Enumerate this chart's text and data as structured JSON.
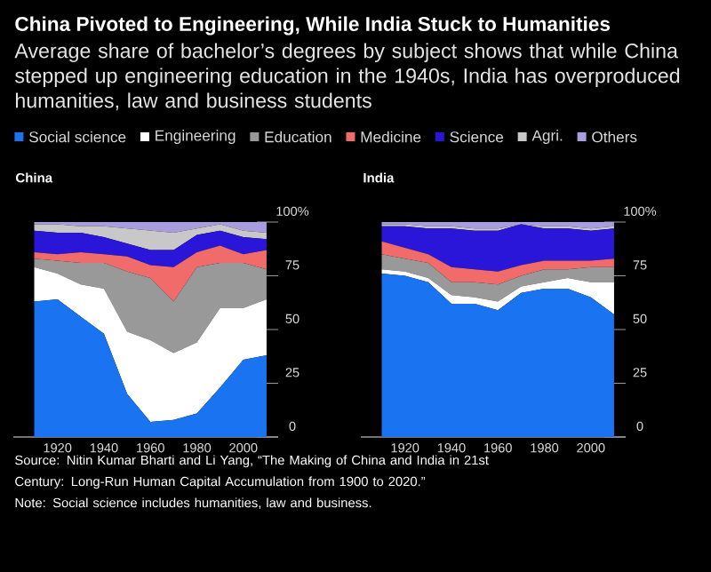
{
  "chart_data": [
    {
      "type": "area",
      "stacked": true,
      "title": "China",
      "annotations": [
        "China Pivoted to Engineering, While India Stuck to Humanities",
        "Average share of bachelor’s degrees by subject shows that while China stepped up engineering education in the 1940s, India has overproduced humanities, law and business students",
        "Source: Nitin Kumar Bharti and Li Yang, “The Making of China and India in 21st Century: Long-Run Human Capital Accumulation from 1900 to 2020.”",
        "Note: Social science includes humanities, law and business."
      ],
      "legend": "top",
      "x": [
        1910,
        1920,
        1930,
        1940,
        1950,
        1960,
        1970,
        1980,
        1990,
        2000,
        2010
      ],
      "xlim": [
        1901,
        2015
      ],
      "xticks": [
        1920,
        1940,
        1960,
        1980,
        2000
      ],
      "ylim": [
        0,
        100
      ],
      "yticks": [
        0,
        25,
        50,
        75,
        {
          "value": 100,
          "label": "100%"
        }
      ],
      "series": [
        {
          "name": "Social science",
          "color": "#1a73f0",
          "values": [
            63,
            64,
            56,
            48,
            20,
            7,
            8,
            11,
            23,
            36,
            38
          ]
        },
        {
          "name": "Engineering",
          "color": "#ffffff",
          "values": [
            16,
            12,
            15,
            21,
            29,
            38,
            31,
            33,
            37,
            24,
            26
          ]
        },
        {
          "name": "Education",
          "color": "#999999",
          "values": [
            4,
            6,
            10,
            12,
            28,
            29,
            24,
            35,
            21,
            21,
            14
          ]
        },
        {
          "name": "Medicine",
          "color": "#f26b6b",
          "values": [
            3,
            3,
            5,
            4,
            7,
            6,
            16,
            7,
            8,
            4,
            9
          ]
        },
        {
          "name": "Science",
          "color": "#2a16d8",
          "values": [
            10,
            10,
            9,
            8,
            6,
            7,
            8,
            8,
            7,
            8,
            5
          ]
        },
        {
          "name": "Agri.",
          "color": "#c8c8c8",
          "values": [
            3,
            4,
            3,
            5,
            7,
            9,
            8,
            3,
            3,
            3,
            3
          ]
        },
        {
          "name": "Others",
          "color": "#a99de0",
          "values": [
            1,
            1,
            2,
            2,
            3,
            4,
            5,
            3,
            1,
            4,
            5
          ]
        }
      ]
    },
    {
      "type": "area",
      "stacked": true,
      "title": "India",
      "x": [
        1910,
        1920,
        1930,
        1940,
        1950,
        1960,
        1970,
        1980,
        1990,
        2000,
        2010
      ],
      "xlim": [
        1901,
        2015
      ],
      "xticks": [
        1920,
        1940,
        1960,
        1980,
        2000
      ],
      "ylim": [
        0,
        100
      ],
      "yticks": [
        0,
        25,
        50,
        75,
        {
          "value": 100,
          "label": "100%"
        }
      ],
      "series": [
        {
          "color": "#1a73f0",
          "values": [
            76,
            75,
            72,
            62,
            62,
            59,
            67,
            69,
            69,
            65,
            57
          ]
        },
        {
          "color": "#ffffff",
          "values": [
            2,
            2,
            2,
            4,
            3,
            4,
            3,
            3,
            5,
            7,
            15
          ]
        },
        {
          "color": "#999999",
          "values": [
            7,
            6,
            7,
            6,
            7,
            8,
            5,
            6,
            4,
            7,
            7
          ]
        },
        {
          "color": "#f26b6b",
          "values": [
            6,
            5,
            4,
            7,
            6,
            6,
            5,
            4,
            4,
            3,
            4
          ]
        },
        {
          "color": "#2a16d8",
          "values": [
            7,
            10,
            12,
            18,
            18,
            19,
            19,
            15,
            15,
            14,
            14
          ]
        },
        {
          "color": "#c8c8c8",
          "values": [
            1,
            1,
            1,
            1,
            1,
            1,
            0,
            1,
            1,
            1,
            1
          ]
        },
        {
          "color": "#a99de0",
          "values": [
            1,
            1,
            2,
            2,
            3,
            3,
            1,
            2,
            2,
            3,
            2
          ]
        }
      ]
    }
  ]
}
